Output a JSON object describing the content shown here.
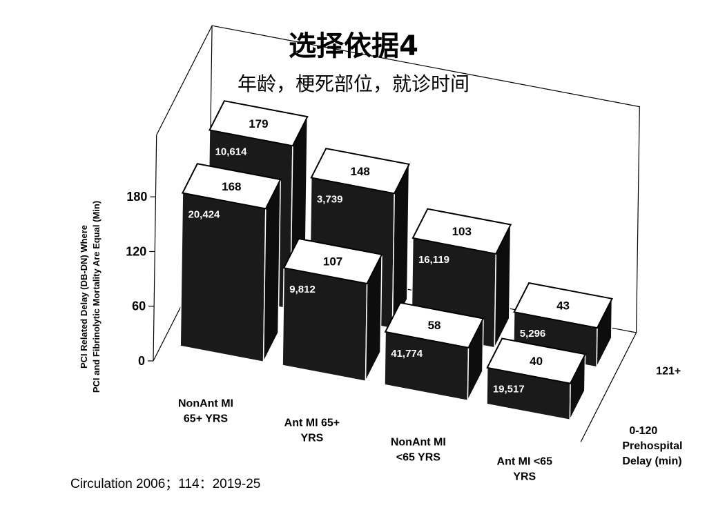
{
  "slide": {
    "title": "选择依据4",
    "subtitle": "年龄，梗死部位，就诊时间",
    "citation": "Circulation 2006；114：2019-25"
  },
  "chart_data": {
    "type": "bar3d",
    "ylabel_line1": "PCI Related Delay (DB-DN) Where",
    "ylabel_line2": "PCI and Fibrinolytic Mortality Are Equal (Min)",
    "ylim": [
      0,
      180
    ],
    "yticks": [
      "0",
      "60",
      "120",
      "180"
    ],
    "depth_axis_title": [
      "Prehospital",
      "Delay (min)"
    ],
    "depth_categories": [
      "0-120",
      "121+"
    ],
    "categories": [
      [
        "NonAnt MI",
        "65+ YRS"
      ],
      [
        "Ant MI 65+",
        "YRS"
      ],
      [
        "NonAnt MI",
        "<65 YRS"
      ],
      [
        "Ant MI <65",
        "YRS"
      ]
    ],
    "series": [
      {
        "delay": "121+",
        "values": [
          179,
          148,
          103,
          43
        ],
        "n": [
          "10,614",
          "3,739",
          "16,119",
          "5,296"
        ]
      },
      {
        "delay": "0-120",
        "values": [
          168,
          107,
          58,
          40
        ],
        "n": [
          "20,424",
          "9,812",
          "41,774",
          "19,517"
        ]
      }
    ],
    "bar_color": "#1a1a1a",
    "top_color": "#ffffff",
    "grid": false
  }
}
